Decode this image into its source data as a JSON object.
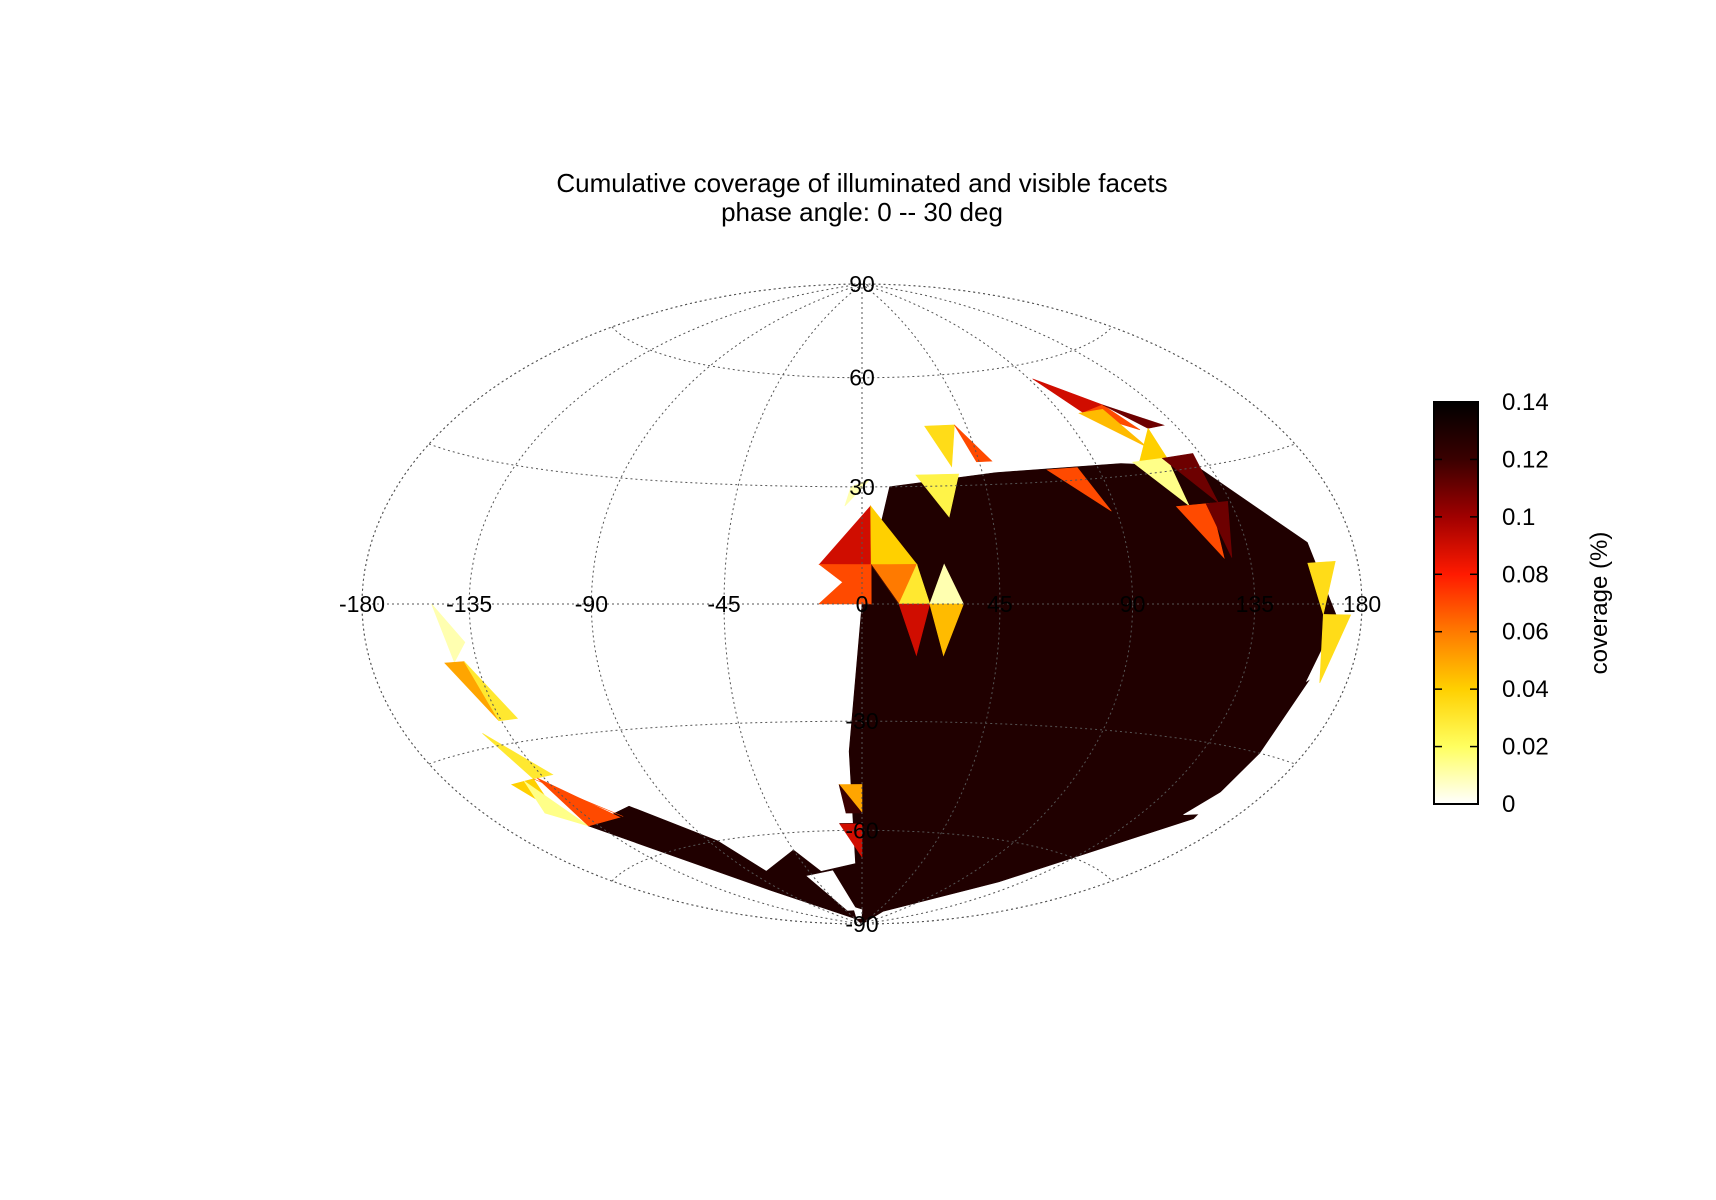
{
  "chart_data": {
    "type": "heatmap",
    "projection": "hammer-aitoff",
    "title": "Cumulative coverage of illuminated and visible facets",
    "subtitle": "phase angle:   0 --  30 deg",
    "lon_ticks": [
      "-180",
      "-135",
      "-90",
      "-45",
      "0",
      "45",
      "90",
      "135",
      "180"
    ],
    "lat_ticks": [
      "90",
      "60",
      "30",
      "-30",
      "-60",
      "-90"
    ],
    "grid": true,
    "colorbar": {
      "label": "coverage (%)",
      "ticks": [
        "0",
        "0.02",
        "0.04",
        "0.06",
        "0.08",
        "0.1",
        "0.12",
        "0.14"
      ],
      "range": [
        0,
        0.14
      ],
      "colormap": [
        "#ffffff",
        "#ffff60",
        "#ffd000",
        "#ff7a00",
        "#ff1a00",
        "#a00000",
        "#3a0000",
        "#000000"
      ]
    },
    "background_value": 0.14,
    "background_region": [
      [
        0,
        0
      ],
      [
        10,
        30
      ],
      [
        50,
        33
      ],
      [
        100,
        33
      ],
      [
        130,
        30
      ],
      [
        160,
        12
      ],
      [
        172,
        -5
      ],
      [
        160,
        -30
      ],
      [
        162,
        -45
      ],
      [
        120,
        -70
      ],
      [
        60,
        -85
      ],
      [
        0,
        -90
      ],
      [
        -45,
        -88
      ],
      [
        -100,
        -75
      ],
      [
        -140,
        -50
      ],
      [
        -110,
        -48
      ],
      [
        -85,
        -60
      ],
      [
        -78,
        -70
      ],
      [
        -45,
        -65
      ],
      [
        -35,
        -72
      ],
      [
        -5,
        -70
      ],
      [
        -5,
        -38
      ]
    ],
    "white_gaps": [
      {
        "region": [
          [
            -50,
            -73
          ],
          [
            -25,
            -72
          ],
          [
            -15,
            -85
          ],
          [
            -40,
            -85
          ]
        ],
        "value": 0
      },
      {
        "region": [
          [
            -35,
            -88
          ],
          [
            -20,
            -84
          ],
          [
            0,
            -85
          ],
          [
            -5,
            -88
          ]
        ],
        "value": 0
      },
      {
        "region": [
          [
            155,
            -45
          ],
          [
            172,
            -42
          ],
          [
            170,
            -30
          ]
        ],
        "value": 0
      },
      {
        "region": [
          [
            162,
            -15
          ],
          [
            175,
            -10
          ],
          [
            172,
            0
          ]
        ],
        "value": 0
      }
    ],
    "facets": [
      {
        "lon": [
          -150,
          -144,
          -138
        ],
        "lat": [
          0,
          -12,
          -8
        ],
        "value": 0.01
      },
      {
        "lon": [
          -148,
          -140,
          -136
        ],
        "lat": [
          -12,
          -12,
          -25
        ],
        "value": 0.05
      },
      {
        "lon": [
          -140,
          -136,
          -128
        ],
        "lat": [
          -12,
          -25,
          -25
        ],
        "value": 0.03
      },
      {
        "lon": [
          -146,
          -140,
          -130
        ],
        "lat": [
          -27,
          -38,
          -38
        ],
        "value": 0.03
      },
      {
        "lon": [
          -152,
          -146,
          -140
        ],
        "lat": [
          -38,
          -45,
          -38
        ],
        "value": 0.04
      },
      {
        "lon": [
          -152,
          -140,
          -145
        ],
        "lat": [
          -45,
          -50,
          -38
        ],
        "value": 0.015
      },
      {
        "lon": [
          -140,
          -118,
          -125
        ],
        "lat": [
          -38,
          -50,
          -46
        ],
        "value": 0.07
      },
      {
        "lon": [
          -138,
          -120,
          -140
        ],
        "lat": [
          -38,
          -50,
          -50
        ],
        "value": 0.07
      },
      {
        "lon": [
          -4,
          3,
          -6
        ],
        "lat": [
          30,
          32,
          25
        ],
        "value": 0.01
      },
      {
        "lon": [
          -14,
          3,
          3
        ],
        "lat": [
          10,
          10,
          25
        ],
        "value": 0.09
      },
      {
        "lon": [
          3,
          18,
          3
        ],
        "lat": [
          10,
          10,
          25
        ],
        "value": 0.04
      },
      {
        "lon": [
          -14,
          3,
          3
        ],
        "lat": [
          10,
          10,
          0
        ],
        "value": 0.07
      },
      {
        "lon": [
          -14,
          3,
          0
        ],
        "lat": [
          0,
          0,
          10
        ],
        "value": 0.07
      },
      {
        "lon": [
          3,
          18,
          12
        ],
        "lat": [
          10,
          10,
          0
        ],
        "value": 0.06
      },
      {
        "lon": [
          3,
          12,
          12
        ],
        "lat": [
          10,
          0,
          0
        ],
        "value": 0.12
      },
      {
        "lon": [
          12,
          22,
          18
        ],
        "lat": [
          0,
          0,
          10
        ],
        "value": 0.03
      },
      {
        "lon": [
          12,
          22,
          18
        ],
        "lat": [
          0,
          0,
          -13
        ],
        "value": 0.09
      },
      {
        "lon": [
          22,
          33,
          27
        ],
        "lat": [
          0,
          0,
          10
        ],
        "value": 0.01
      },
      {
        "lon": [
          22,
          33,
          27
        ],
        "lat": [
          0,
          0,
          -13
        ],
        "value": 0.045
      },
      {
        "lon": [
          27,
          40,
          34
        ],
        "lat": [
          46,
          46,
          35
        ],
        "value": 0.035
      },
      {
        "lon": [
          40,
          50,
          44
        ],
        "lat": [
          46,
          36,
          36
        ],
        "value": 0.07
      },
      {
        "lon": [
          20,
          36,
          30
        ],
        "lat": [
          33,
          33,
          22
        ],
        "value": 0.025
      },
      {
        "lon": [
          70,
          82,
          88
        ],
        "lat": [
          33,
          33,
          22
        ],
        "value": 0.07
      },
      {
        "lon": [
          92,
          112,
          100
        ],
        "lat": [
          56,
          47,
          46
        ],
        "value": 0.09
      },
      {
        "lon": [
          100,
          112,
          118
        ],
        "lat": [
          46,
          47,
          40
        ],
        "value": 0.07
      },
      {
        "lon": [
          98,
          110,
          115
        ],
        "lat": [
          46,
          46,
          36
        ],
        "value": 0.045
      },
      {
        "lon": [
          112,
          122,
          130
        ],
        "lat": [
          47,
          40,
          40
        ],
        "value": 0.11
      },
      {
        "lon": [
          108,
          120,
          122
        ],
        "lat": [
          33,
          33,
          40
        ],
        "value": 0.04
      },
      {
        "lon": [
          105,
          120,
          118
        ],
        "lat": [
          33,
          33,
          22
        ],
        "value": 0.015
      },
      {
        "lon": [
          118,
          132,
          130
        ],
        "lat": [
          33,
          33,
          22
        ],
        "value": 0.11
      },
      {
        "lon": [
          113,
          127,
          125
        ],
        "lat": [
          22,
          22,
          10
        ],
        "value": 0.07
      },
      {
        "lon": [
          125,
          134,
          128
        ],
        "lat": [
          22,
          22,
          10
        ],
        "value": 0.11
      },
      {
        "lon": [
          158,
          170,
          163
        ],
        "lat": [
          8,
          8,
          -2
        ],
        "value": 0.035
      },
      {
        "lon": [
          163,
          175,
          168
        ],
        "lat": [
          -2,
          -2,
          -15
        ],
        "value": 0.035
      },
      {
        "lon": [
          -10,
          0,
          0
        ],
        "lat": [
          -47,
          -47,
          -55
        ],
        "value": 0.05
      },
      {
        "lon": [
          -10,
          0,
          -8
        ],
        "lat": [
          -47,
          -55,
          -55
        ],
        "value": 0.12
      },
      {
        "lon": [
          -12,
          0,
          0
        ],
        "lat": [
          -58,
          -58,
          -68
        ],
        "value": 0.09
      },
      {
        "lon": [
          -12,
          -2,
          0
        ],
        "lat": [
          -58,
          -58,
          -58
        ],
        "value": 0.12
      }
    ]
  }
}
